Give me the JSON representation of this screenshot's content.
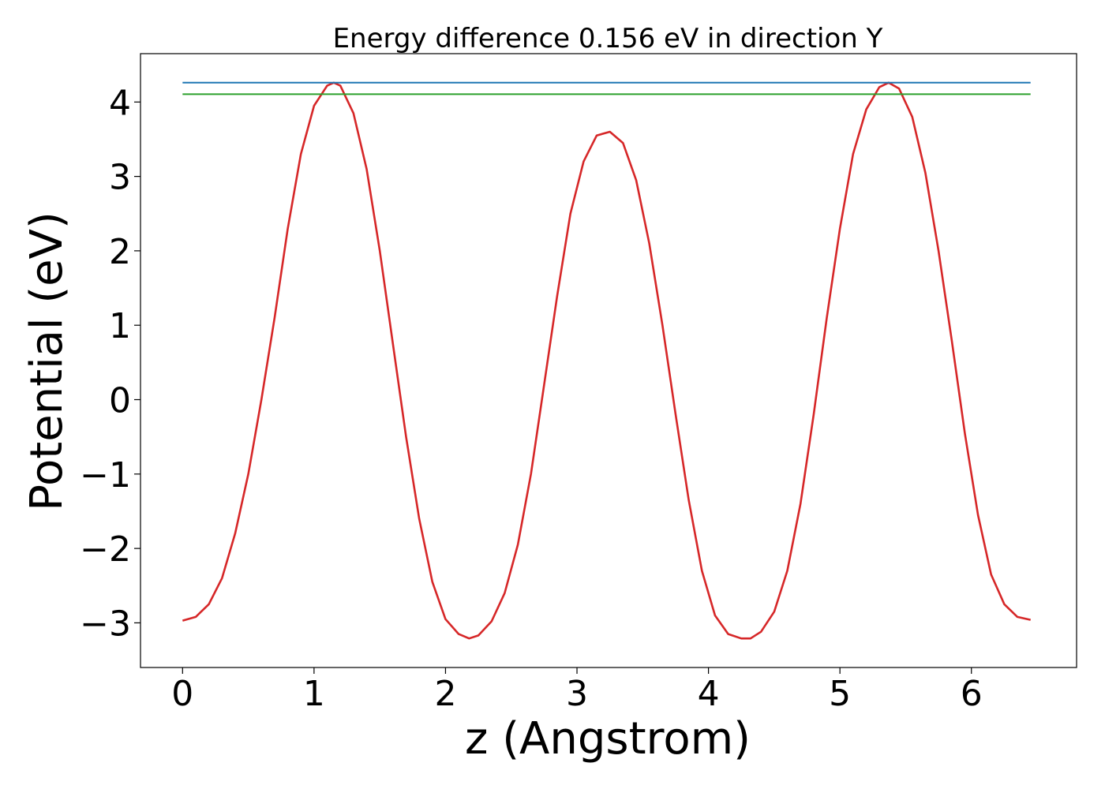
{
  "chart_data": {
    "type": "line",
    "title": "Energy difference 0.156 eV in direction Y",
    "xlabel": "z (Angstrom)",
    "ylabel": "Potential (eV)",
    "xlim": [
      -0.32,
      6.8
    ],
    "ylim": [
      -3.6,
      4.65
    ],
    "xticks": [
      0,
      1,
      2,
      3,
      4,
      5,
      6
    ],
    "xtick_labels": [
      "0",
      "1",
      "2",
      "3",
      "4",
      "5",
      "6"
    ],
    "yticks": [
      -3,
      -2,
      -1,
      0,
      1,
      2,
      3,
      4
    ],
    "ytick_labels": [
      "−3",
      "−2",
      "−1",
      "0",
      "1",
      "2",
      "3",
      "4"
    ],
    "grid": false,
    "legend": "none",
    "series": [
      {
        "color": "#d62728",
        "x": [
          0.0,
          0.1,
          0.2,
          0.3,
          0.4,
          0.5,
          0.6,
          0.7,
          0.8,
          0.9,
          1.0,
          1.1,
          1.15,
          1.2,
          1.3,
          1.4,
          1.5,
          1.6,
          1.7,
          1.8,
          1.9,
          2.0,
          2.1,
          2.18,
          2.25,
          2.35,
          2.45,
          2.55,
          2.65,
          2.75,
          2.85,
          2.95,
          3.05,
          3.15,
          3.25,
          3.35,
          3.45,
          3.55,
          3.65,
          3.75,
          3.85,
          3.95,
          4.05,
          4.15,
          4.25,
          4.32,
          4.4,
          4.5,
          4.6,
          4.7,
          4.8,
          4.9,
          5.0,
          5.1,
          5.2,
          5.3,
          5.37,
          5.45,
          5.55,
          5.65,
          5.75,
          5.85,
          5.95,
          6.05,
          6.15,
          6.25,
          6.35,
          6.45
        ],
        "y": [
          -2.97,
          -2.92,
          -2.75,
          -2.4,
          -1.8,
          -1.0,
          0.0,
          1.1,
          2.3,
          3.3,
          3.95,
          4.22,
          4.26,
          4.22,
          3.85,
          3.1,
          2.0,
          0.75,
          -0.5,
          -1.6,
          -2.45,
          -2.95,
          -3.15,
          -3.21,
          -3.17,
          -2.98,
          -2.6,
          -1.95,
          -1.0,
          0.2,
          1.4,
          2.5,
          3.2,
          3.55,
          3.6,
          3.45,
          2.95,
          2.1,
          1.0,
          -0.2,
          -1.35,
          -2.3,
          -2.9,
          -3.15,
          -3.21,
          -3.21,
          -3.12,
          -2.85,
          -2.3,
          -1.4,
          -0.2,
          1.1,
          2.3,
          3.3,
          3.9,
          4.2,
          4.26,
          4.18,
          3.8,
          3.05,
          2.0,
          0.8,
          -0.45,
          -1.55,
          -2.35,
          -2.75,
          -2.92,
          -2.96
        ]
      },
      {
        "color": "#1f77b4",
        "x": [
          0.0,
          6.45
        ],
        "y": [
          4.26,
          4.26
        ]
      },
      {
        "color": "#2ca02c",
        "x": [
          0.0,
          6.45
        ],
        "y": [
          4.105,
          4.105
        ]
      }
    ]
  }
}
